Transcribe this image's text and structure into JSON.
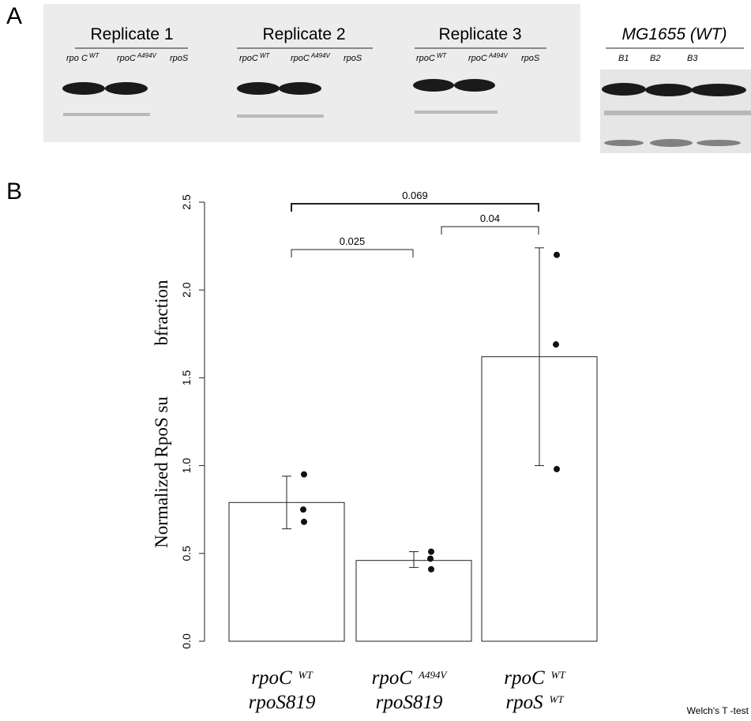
{
  "panel_labels": [
    "A",
    "B"
  ],
  "blots": [
    {
      "title": "Replicate  1",
      "lanes": [
        {
          "name": "rpo C",
          "sup": "WT"
        },
        {
          "name": "rpoC",
          "sup": "A494V"
        },
        {
          "name": "rpoS"
        }
      ]
    },
    {
      "title": "Replicate  2",
      "lanes": [
        {
          "name": "rpoC",
          "sup": "WT"
        },
        {
          "name": "rpoC",
          "sup": "A494V"
        },
        {
          "name": "rpoS"
        }
      ]
    },
    {
      "title": "Replicate  3",
      "lanes": [
        {
          "name": "rpoC",
          "sup": "WT"
        },
        {
          "name": "rpoC",
          "sup": "A494V"
        },
        {
          "name": "rpoS"
        }
      ]
    },
    {
      "title": "MG1655 (WT)",
      "lanes": [
        {
          "name": "B1"
        },
        {
          "name": "B2"
        },
        {
          "name": "B3"
        }
      ]
    }
  ],
  "chart_data": {
    "type": "bar",
    "ylabel": [
      "Normalized RpoS su",
      "bfraction"
    ],
    "categories": [
      {
        "line1": "rpoC",
        "line1_sup": "WT",
        "line2": "rpoS819"
      },
      {
        "line1": "rpoC",
        "line1_sup": "A494V",
        "line2": "rpoS819"
      },
      {
        "line1": "rpoC",
        "line1_sup": "WT",
        "line2": "rpoS",
        "line2_sup": "WT"
      }
    ],
    "values": [
      0.79,
      0.46,
      1.62
    ],
    "error_low": [
      0.64,
      0.42,
      1.0
    ],
    "error_high": [
      0.94,
      0.51,
      2.24
    ],
    "points": [
      [
        0.95,
        0.75,
        0.68
      ],
      [
        0.51,
        0.47,
        0.41
      ],
      [
        2.2,
        1.69,
        0.98
      ]
    ],
    "color": "#ffffff",
    "ylim": [
      0,
      2.5
    ],
    "yticks": [
      {
        "value": 0,
        "label": "0.0"
      },
      0.5,
      {
        "value": 1,
        "label": "1.0"
      },
      1.5,
      {
        "value": 2,
        "label": "2.0"
      },
      2.5
    ],
    "comparisons": [
      {
        "label": "0.025",
        "groups": [
          0,
          1
        ]
      },
      {
        "label": "0.04",
        "groups": [
          1,
          2
        ]
      },
      {
        "label": "0.069",
        "groups": [
          0,
          2
        ]
      }
    ],
    "footnote": "Welch's T -test"
  }
}
